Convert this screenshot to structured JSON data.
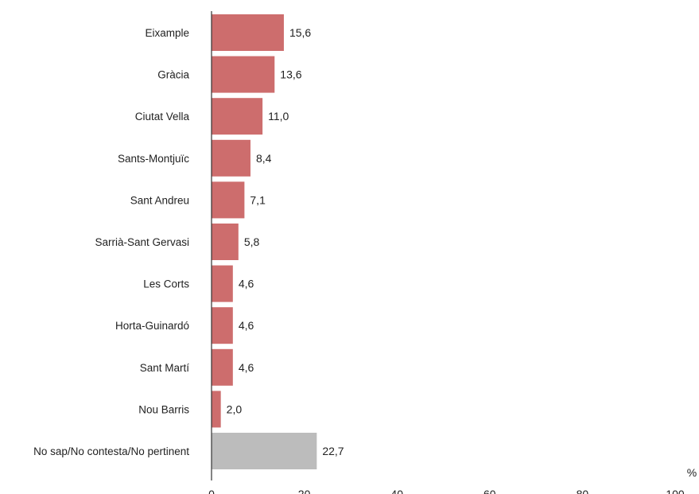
{
  "chart_data": {
    "type": "bar",
    "orientation": "horizontal",
    "categories": [
      "Eixample",
      "Gràcia",
      "Ciutat Vella",
      "Sants-Montjuïc",
      "Sant Andreu",
      "Sarrià-Sant Gervasi",
      "Les Corts",
      "Horta-Guinardó",
      "Sant Martí",
      "Nou Barris",
      "No sap/No contesta/No pertinent"
    ],
    "values": [
      15.6,
      13.6,
      11.0,
      8.4,
      7.1,
      5.8,
      4.6,
      4.6,
      4.6,
      2.0,
      22.7
    ],
    "value_labels": [
      "15,6",
      "13,6",
      "11,0",
      "8,4",
      "7,1",
      "5,8",
      "4,6",
      "4,6",
      "4,6",
      "2,0",
      "22,7"
    ],
    "bar_colors": [
      "#cd6d6d",
      "#cd6d6d",
      "#cd6d6d",
      "#cd6d6d",
      "#cd6d6d",
      "#cd6d6d",
      "#cd6d6d",
      "#cd6d6d",
      "#cd6d6d",
      "#cd6d6d",
      "#bcbcbc"
    ],
    "xlim": [
      0,
      100
    ],
    "x_ticks": [
      0,
      20,
      40,
      60,
      80,
      100
    ],
    "x_unit": "%",
    "grid": false,
    "legend": "none"
  }
}
